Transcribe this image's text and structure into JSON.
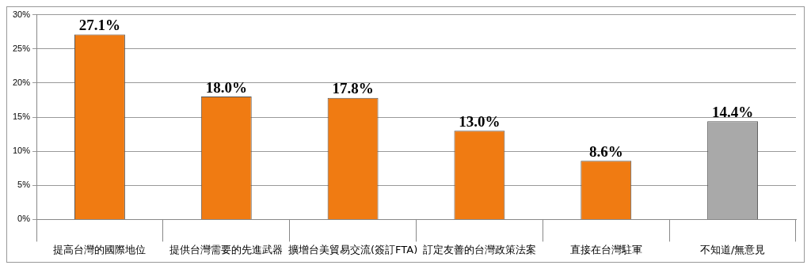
{
  "chart_data": {
    "type": "bar",
    "categories": [
      "提高台灣的國際地位",
      "提供台灣需要的先進武器",
      "擴增台美貿易交流(簽訂FTA)",
      "訂定友善的台灣政策法案",
      "直接在台灣駐軍",
      "不知道/無意見"
    ],
    "values": [
      27.1,
      18.0,
      17.8,
      13.0,
      8.6,
      14.4
    ],
    "value_labels": [
      "27.1%",
      "18.0%",
      "17.8%",
      "13.0%",
      "8.6%",
      "14.4%"
    ],
    "colors": [
      "#f07b12",
      "#f07b12",
      "#f07b12",
      "#f07b12",
      "#f07b12",
      "#a9a9a9"
    ],
    "ylim": [
      0,
      30
    ],
    "yticks": [
      {
        "value": 0,
        "label": "0%"
      },
      {
        "value": 5,
        "label": "5%"
      },
      {
        "value": 10,
        "label": "10%"
      },
      {
        "value": 15,
        "label": "15%"
      },
      {
        "value": 20,
        "label": "20%"
      },
      {
        "value": 25,
        "label": "25%"
      },
      {
        "value": 30,
        "label": "30%"
      }
    ],
    "grid": "y"
  }
}
